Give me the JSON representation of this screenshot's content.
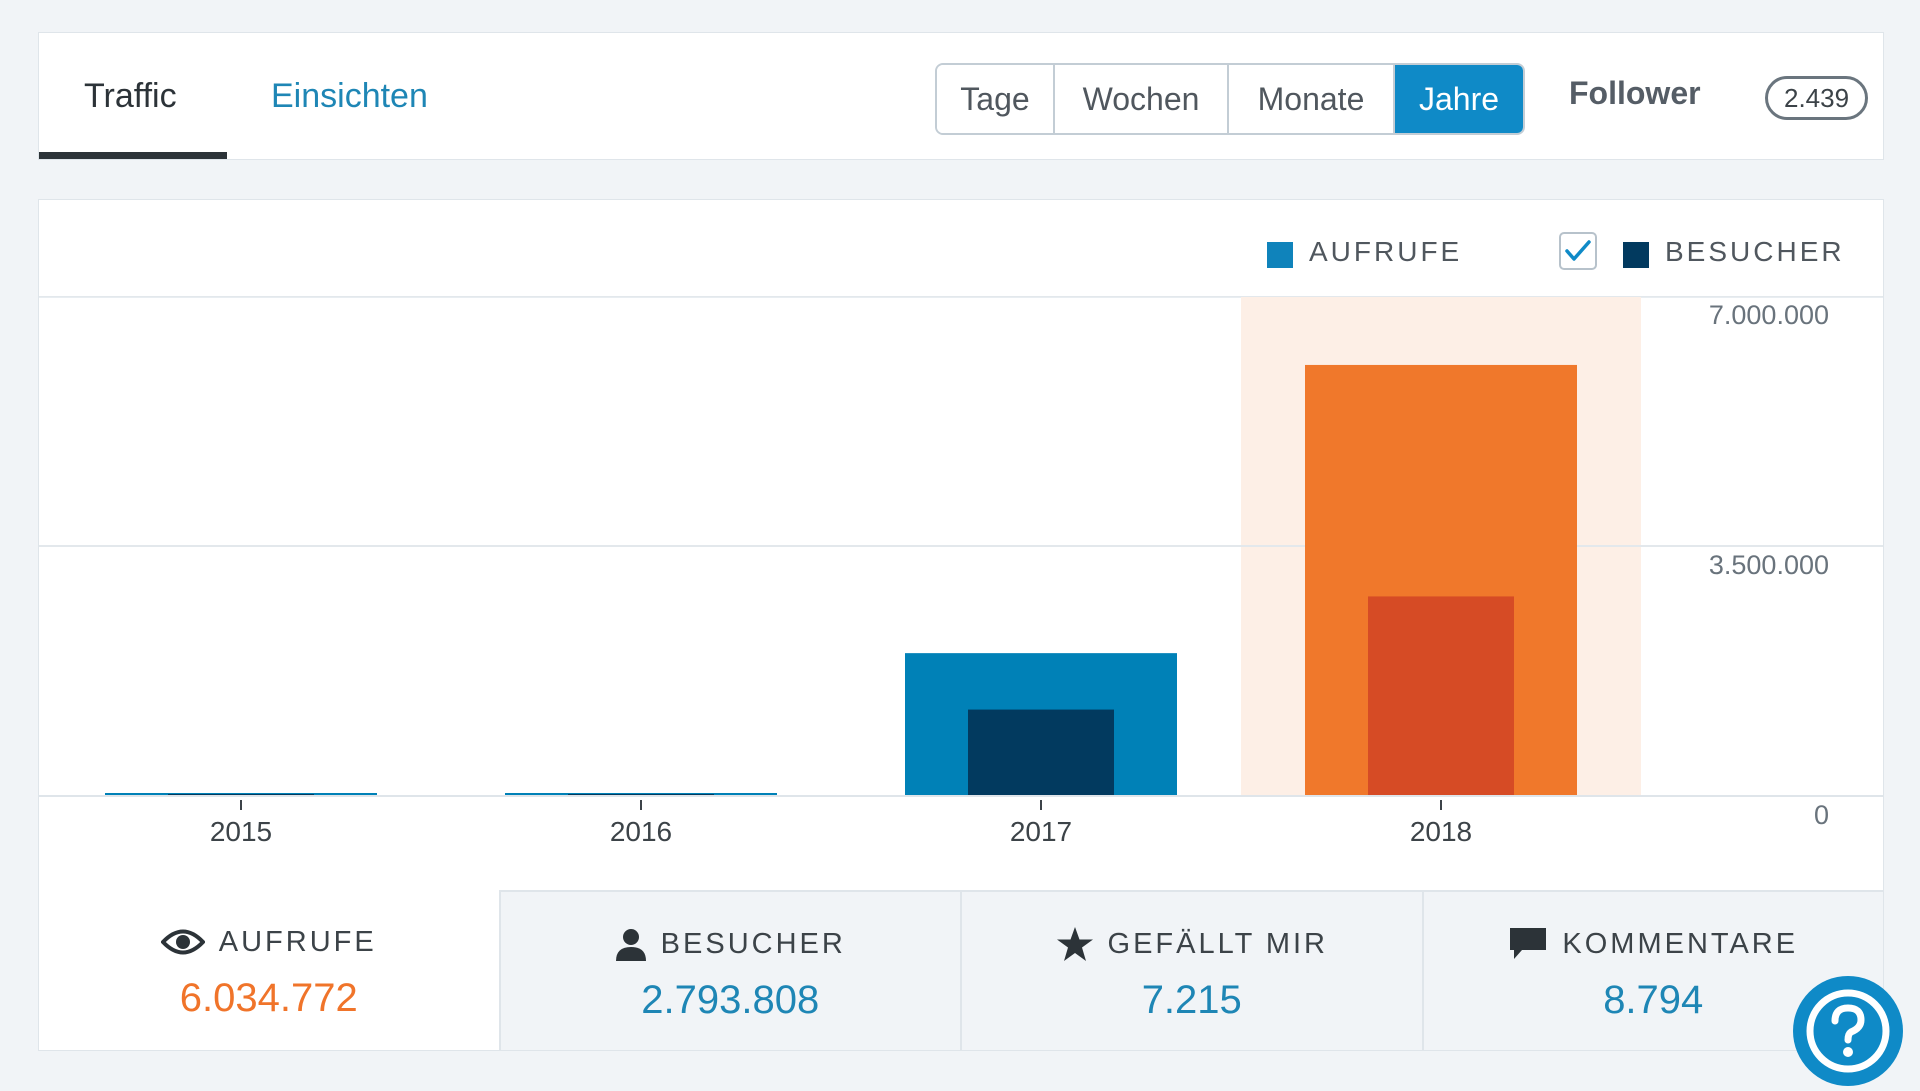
{
  "tabs": [
    {
      "label": "Traffic",
      "active": true
    },
    {
      "label": "Einsichten",
      "active": false
    }
  ],
  "periods": [
    {
      "label": "Tage",
      "active": false
    },
    {
      "label": "Wochen",
      "active": false
    },
    {
      "label": "Monate",
      "active": false
    },
    {
      "label": "Jahre",
      "active": true
    }
  ],
  "follower": {
    "label": "Follower",
    "count": "2.439"
  },
  "legend": [
    {
      "label": "AUFRUFE",
      "color": "#0f83bb"
    },
    {
      "label": "BESUCHER",
      "color": "#023a5f",
      "checked": true
    }
  ],
  "colors": {
    "views": "#0081b7",
    "visitors": "#023a5f",
    "views_selected": "#f0782b",
    "visitors_selected": "#d64b25",
    "selected_band": "#fdefe6",
    "accent": "#0f8ac7"
  },
  "chart_data": {
    "type": "bar",
    "categories": [
      "2015",
      "2016",
      "2017",
      "2018"
    ],
    "series": [
      {
        "name": "AUFRUFE",
        "values": [
          40000,
          40000,
          2000000,
          6034772
        ]
      },
      {
        "name": "BESUCHER",
        "values": [
          15000,
          15000,
          1210000,
          2793808
        ]
      }
    ],
    "selected_category": "2018",
    "ylim": [
      0,
      7000000
    ],
    "yticks": [
      0,
      3500000,
      7000000
    ],
    "ytick_labels": [
      "0",
      "3.500.000",
      "7.000.000"
    ],
    "grid": true,
    "legend_position": "top-right"
  },
  "stats": [
    {
      "icon": "eye-icon",
      "label": "AUFRUFE",
      "value": "6.034.772",
      "selected": true
    },
    {
      "icon": "person-icon",
      "label": "BESUCHER",
      "value": "2.793.808",
      "selected": false
    },
    {
      "icon": "star-icon",
      "label": "GEFÄLLT MIR",
      "value": "7.215",
      "selected": false
    },
    {
      "icon": "comment-icon",
      "label": "KOMMENTARE",
      "value": "8.794",
      "selected": false
    }
  ],
  "help": {
    "icon": "help-icon"
  }
}
